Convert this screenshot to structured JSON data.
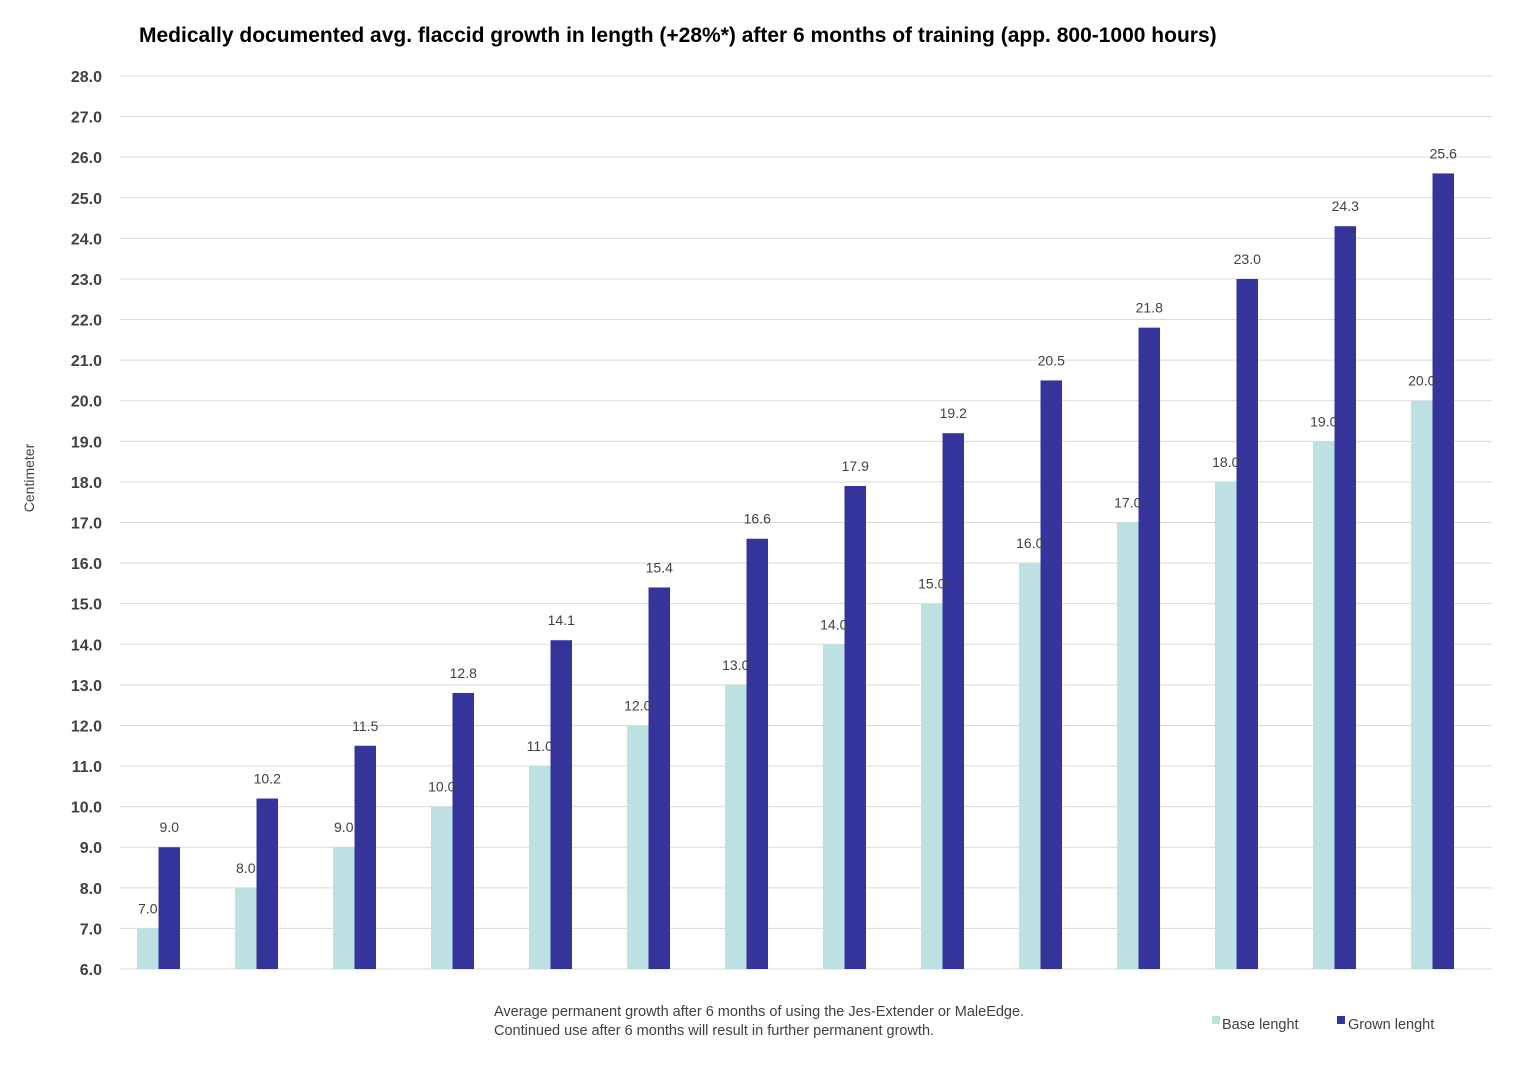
{
  "chart_data": {
    "type": "bar",
    "title": "Medically documented avg. flaccid growth in length (+28%*) after 6 months of training (app. 800-1000 hours)",
    "ylabel": "Centimeter",
    "xlabel": "",
    "ylim": [
      6.0,
      28.0
    ],
    "ytick_step": 1.0,
    "grid": true,
    "legend_position": "bottom-right",
    "categories": [
      "",
      "",
      "",
      "",
      "",
      "",
      "",
      "",
      "",
      "",
      "",
      "",
      "",
      ""
    ],
    "series": [
      {
        "name": "Base lenght",
        "color": "#bde0e3",
        "values": [
          7.0,
          8.0,
          9.0,
          10.0,
          11.0,
          12.0,
          13.0,
          14.0,
          15.0,
          16.0,
          17.0,
          18.0,
          19.0,
          20.0
        ]
      },
      {
        "name": "Grown lenght",
        "color": "#35349a",
        "values": [
          9.0,
          10.2,
          11.5,
          12.8,
          14.1,
          15.4,
          16.6,
          17.9,
          19.2,
          20.5,
          21.8,
          23.0,
          24.3,
          25.6
        ]
      }
    ],
    "annotations": [
      "Average permanent growth after 6 months of using the Jes-Extender or MaleEdge.",
      "Continued use after 6 months will result in further permanent growth."
    ]
  }
}
